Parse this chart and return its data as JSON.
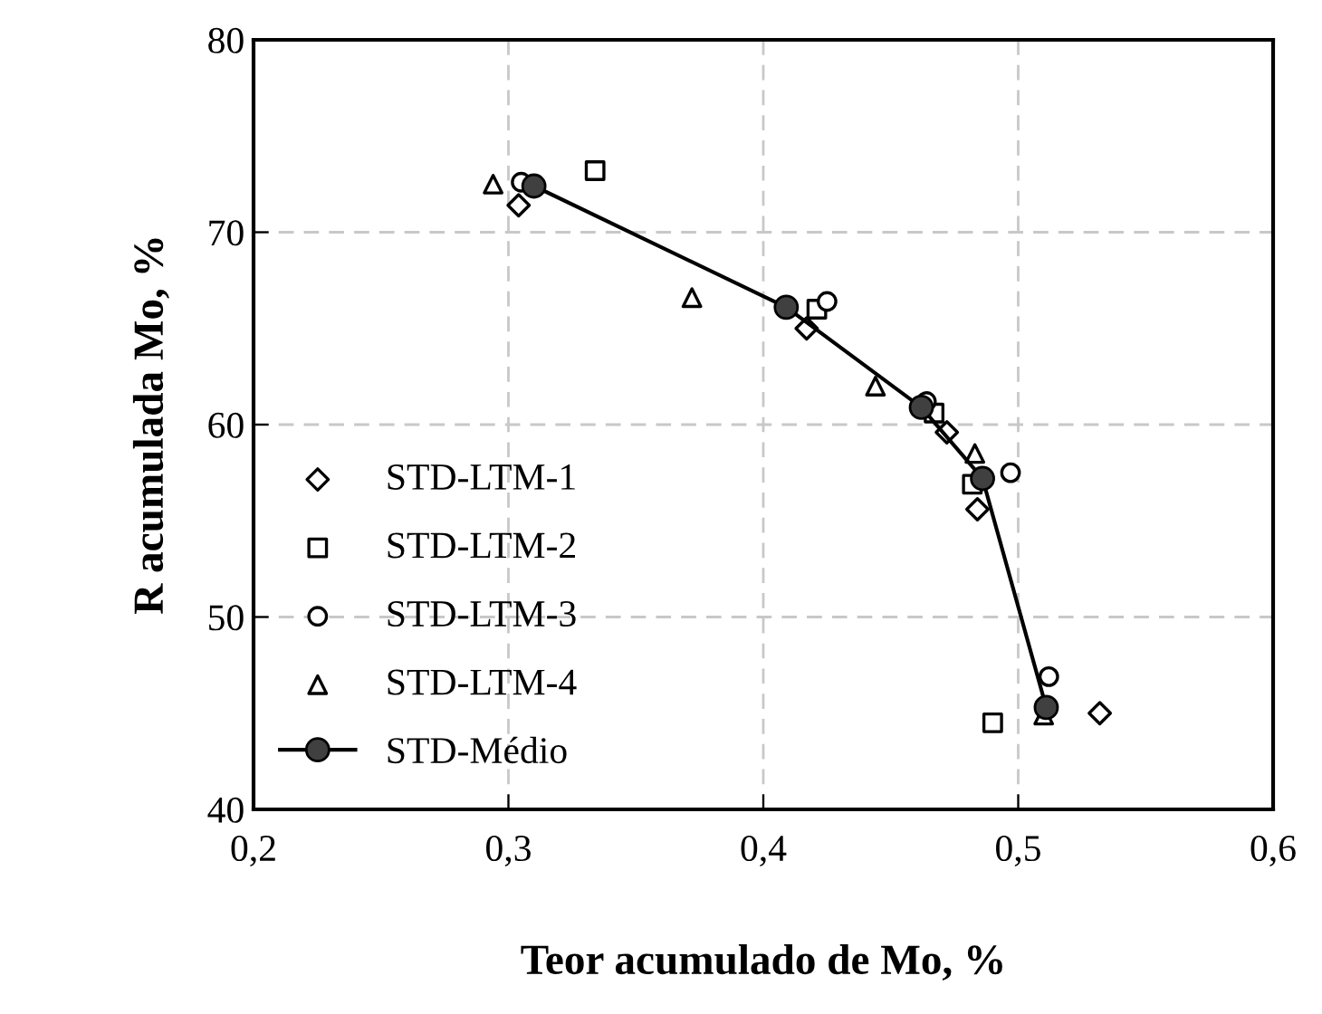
{
  "chart_data": {
    "type": "scatter",
    "xlabel": "Teor acumulado de Mo, %",
    "ylabel": "R acumulada Mo, %",
    "xlim": [
      0.2,
      0.6
    ],
    "ylim": [
      40,
      80
    ],
    "xticks": [
      {
        "value": 0.2,
        "label": "0,2"
      },
      {
        "value": 0.3,
        "label": "0,3"
      },
      {
        "value": 0.4,
        "label": "0,4"
      },
      {
        "value": 0.5,
        "label": "0,5"
      },
      {
        "value": 0.6,
        "label": "0,6"
      }
    ],
    "yticks": [
      40,
      50,
      60,
      70,
      80
    ],
    "grid": true,
    "legend": "left",
    "series": [
      {
        "name": "STD-LTM-1",
        "marker": "diamond",
        "color": "#ffffff",
        "x": [
          0.304,
          0.417,
          0.472,
          0.484,
          0.532
        ],
        "values": [
          71.4,
          65.0,
          59.6,
          55.6,
          45.0
        ]
      },
      {
        "name": "STD-LTM-2",
        "marker": "square",
        "color": "#ffffff",
        "x": [
          0.334,
          0.421,
          0.467,
          0.482,
          0.49
        ],
        "values": [
          73.2,
          66.0,
          60.6,
          56.9,
          44.5
        ]
      },
      {
        "name": "STD-LTM-3",
        "marker": "circle",
        "color": "#ffffff",
        "x": [
          0.305,
          0.425,
          0.464,
          0.497,
          0.512
        ],
        "values": [
          72.6,
          66.4,
          61.2,
          57.5,
          46.9
        ]
      },
      {
        "name": "STD-LTM-4",
        "marker": "triangle",
        "color": "#ffffff",
        "x": [
          0.294,
          0.372,
          0.444,
          0.483,
          0.51
        ],
        "values": [
          72.5,
          66.6,
          62.0,
          58.5,
          44.9
        ]
      },
      {
        "name": "STD-Médio",
        "type": "line",
        "marker": "circle",
        "color": "#404040",
        "line_style": "solid",
        "x": [
          0.31,
          0.409,
          0.462,
          0.486,
          0.511
        ],
        "values": [
          72.4,
          66.1,
          60.9,
          57.2,
          45.3
        ]
      }
    ]
  }
}
